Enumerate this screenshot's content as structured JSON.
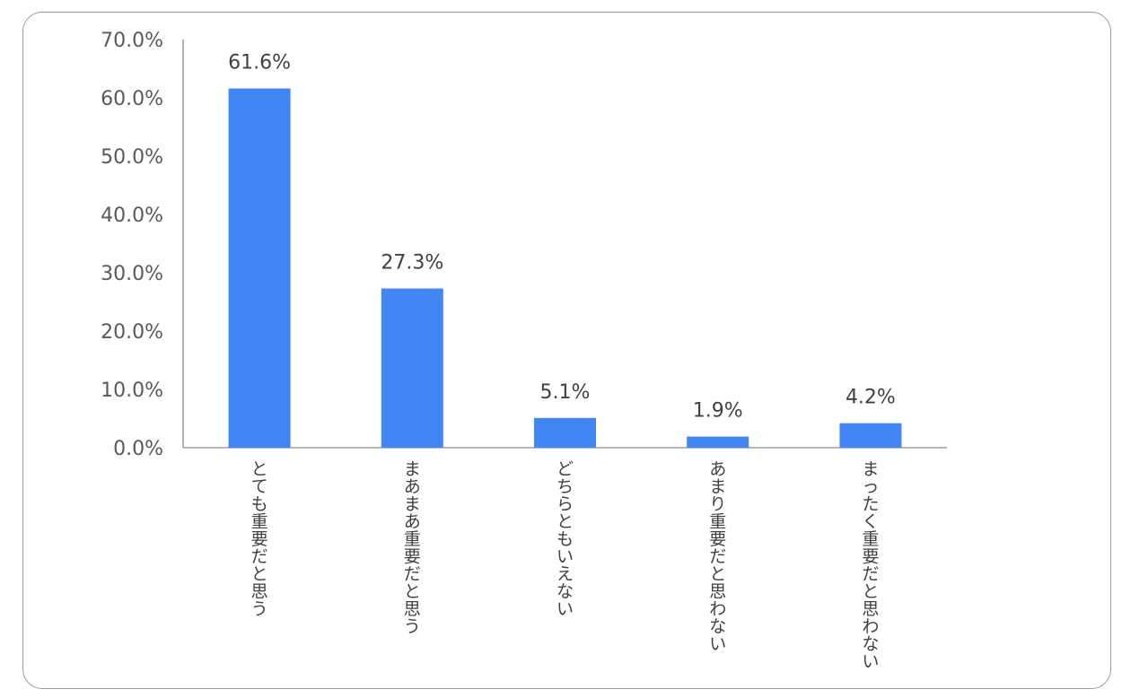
{
  "chart_data": {
    "type": "bar",
    "title": "",
    "xlabel": "",
    "ylabel": "",
    "categories": [
      "とても重要だと思う",
      "まあまあ重要だと思う",
      "どちらともいえない",
      "あまり重要だと思わない",
      "まったく重要だと思わない"
    ],
    "values": [
      61.6,
      27.3,
      5.1,
      1.9,
      4.2
    ],
    "data_labels": [
      "61.6%",
      "27.3%",
      "5.1%",
      "1.9%",
      "4.2%"
    ],
    "yticks": [
      "0.0%",
      "10.0%",
      "20.0%",
      "30.0%",
      "40.0%",
      "50.0%",
      "60.0%",
      "70.0%"
    ],
    "ylim": [
      0,
      70
    ],
    "grid": false,
    "legend": "none",
    "bar_color": "#4285F4",
    "axis_color": "#8c8c8c"
  }
}
